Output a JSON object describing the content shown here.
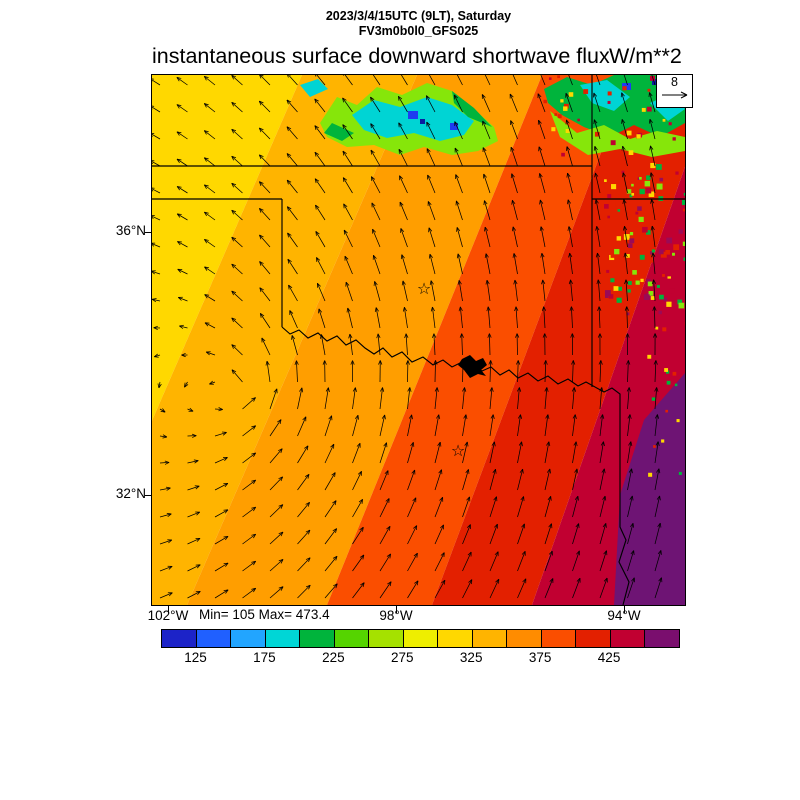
{
  "header": {
    "line1": "2023/3/4/15UTC (9LT), Saturday",
    "line2": "FV3m0b0l0_GFS025"
  },
  "title": {
    "text": "instantaneous surface downward shortwave flux",
    "units": "W/m**2"
  },
  "map": {
    "ref_vector_label": "8",
    "stats": "Min= 105 Max= 473.4",
    "lat_labels": [
      "36°N",
      "32°N"
    ],
    "lon_labels": [
      "102°W",
      "98°W",
      "94°W"
    ]
  },
  "colorbar": {
    "tick_labels": [
      "125",
      "175",
      "225",
      "275",
      "325",
      "375",
      "425"
    ],
    "colors": [
      "#1c23c8",
      "#2060ff",
      "#22a5ff",
      "#00d6d6",
      "#00b43c",
      "#55d400",
      "#a5e100",
      "#eeee00",
      "#ffd800",
      "#ffb400",
      "#ff8c00",
      "#fa4e00",
      "#e32000",
      "#c10031",
      "#7a0e6e"
    ]
  },
  "chart_data": {
    "type": "heatmap",
    "title": "instantaneous surface downward shortwave flux",
    "units": "W/m**2",
    "valid_time": "2023/3/4/15UTC (9LT), Saturday",
    "model_run": "FV3m0b0l0_GFS025",
    "min_value": 105,
    "max_value": 473.4,
    "reference_vector_value": 8,
    "colorbar_levels": [
      100,
      125,
      150,
      175,
      200,
      225,
      250,
      275,
      300,
      325,
      350,
      375,
      400,
      425,
      450,
      475
    ],
    "colorbar_colors": [
      "#1c23c8",
      "#2060ff",
      "#22a5ff",
      "#00d6d6",
      "#00b43c",
      "#55d400",
      "#a5e100",
      "#eeee00",
      "#ffd800",
      "#ffb400",
      "#ff8c00",
      "#fa4e00",
      "#e32000",
      "#c10031",
      "#7a0e6e"
    ],
    "x_axis": {
      "ticks": [
        "102°W",
        "98°W",
        "94°W"
      ]
    },
    "y_axis": {
      "ticks": [
        "36°N",
        "32°N"
      ]
    },
    "wind_vector_overlay": true,
    "region": "Oklahoma / north Texas with state borders and Red River",
    "gradient_direction": "flux increases from northwest (yellow ~300) to southeast (purple ~475)",
    "cloud_low_flux_patches": "green/cyan/blue patches along top-center and top-right edge",
    "flux_bands_west_to_east": [
      {
        "range": [
          300,
          325
        ],
        "color": "#ffd800"
      },
      {
        "range": [
          325,
          350
        ],
        "color": "#ffb400"
      },
      {
        "range": [
          350,
          375
        ],
        "color": "#ff9e00"
      },
      {
        "range": [
          375,
          400
        ],
        "color": "#fa4e00"
      },
      {
        "range": [
          400,
          425
        ],
        "color": "#e32000"
      },
      {
        "range": [
          425,
          450
        ],
        "color": "#c10031"
      },
      {
        "range": [
          450,
          475
        ],
        "color": "#9b0a56"
      },
      {
        "range": [
          450,
          475
        ],
        "color": "#6e1474"
      }
    ],
    "markers": [
      "star marker near Oklahoma City",
      "star marker near Dallas",
      "Lake Texoma black blob"
    ]
  }
}
